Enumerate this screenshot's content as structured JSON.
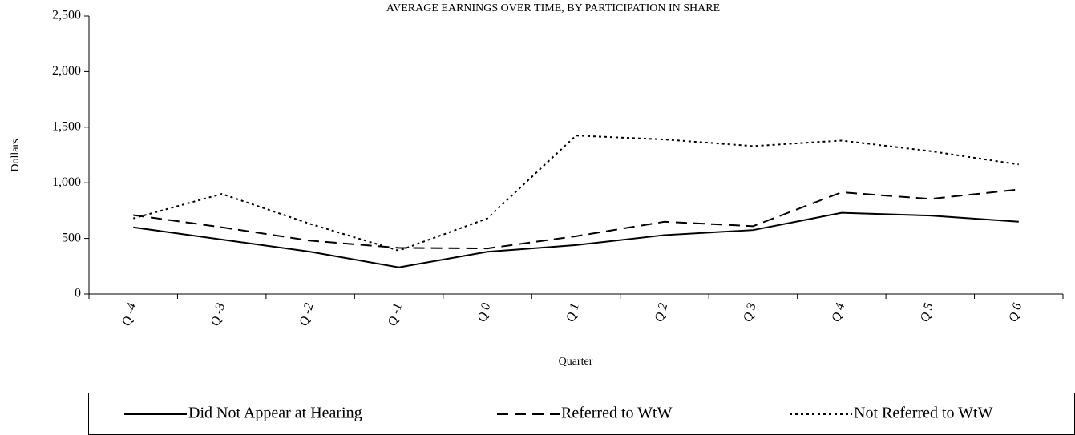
{
  "chart_data": {
    "type": "line",
    "title": "AVERAGE EARNINGS OVER TIME, BY PARTICIPATION IN SHARE",
    "x_label": "Quarter",
    "y_label": "Dollars",
    "categories": [
      "Q -4",
      "Q -3",
      "Q -2",
      "Q -1",
      "Q 0",
      "Q 1",
      "Q 2",
      "Q 3",
      "Q 4",
      "Q 5",
      "Q 6"
    ],
    "series": [
      {
        "name": "Did Not Appear at Hearing",
        "color": "#000000",
        "dash": "none",
        "values": [
          600,
          490,
          380,
          240,
          380,
          440,
          530,
          575,
          730,
          705,
          650
        ]
      },
      {
        "name": "Referred to WtW",
        "color": "#000000",
        "dash": "14,8",
        "values": [
          710,
          600,
          480,
          415,
          410,
          520,
          650,
          610,
          915,
          855,
          940
        ]
      },
      {
        "name": "Not Referred to WtW",
        "color": "#000000",
        "dash": "3,4",
        "values": [
          680,
          900,
          630,
          390,
          680,
          1425,
          1390,
          1330,
          1380,
          1285,
          1165
        ]
      }
    ],
    "ylim": [
      0,
      2500
    ],
    "yticks": [
      0,
      500,
      {
        "value": 1000,
        "label": "1,000"
      },
      {
        "value": 1500,
        "label": "1,500"
      },
      {
        "value": 2000,
        "label": "2,000"
      },
      {
        "value": 2500,
        "label": "2,500"
      }
    ],
    "grid": false,
    "legend": "bottom"
  }
}
